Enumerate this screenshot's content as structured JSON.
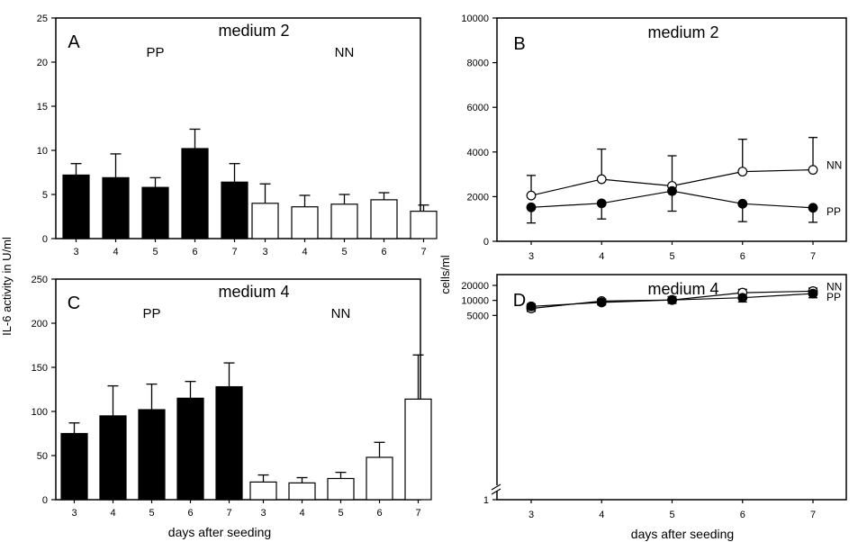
{
  "figure": {
    "ylabel_left": "IL-6 activity in U/ml",
    "ylabel_right": "cells/ml",
    "xlabel_left": "days after seeding",
    "xlabel_right": "days after seeding"
  },
  "chart_data": [
    {
      "id": "A",
      "type": "bar",
      "panel_letter": "A",
      "title": "medium 2",
      "ylim": [
        0,
        25
      ],
      "yticks": [
        0,
        5,
        10,
        15,
        20,
        25
      ],
      "groups": [
        {
          "name": "PP",
          "fill": "#000000",
          "categories": [
            "3",
            "4",
            "5",
            "6",
            "7"
          ],
          "values": [
            7.2,
            6.9,
            5.8,
            10.2,
            6.4
          ],
          "errors": [
            1.3,
            2.7,
            1.1,
            2.2,
            2.1
          ]
        },
        {
          "name": "NN",
          "fill": "#ffffff",
          "categories": [
            "3",
            "4",
            "5",
            "6",
            "7"
          ],
          "values": [
            4.0,
            3.6,
            3.9,
            4.4,
            3.1
          ],
          "errors": [
            2.2,
            1.3,
            1.1,
            0.8,
            0.7
          ]
        }
      ]
    },
    {
      "id": "C",
      "type": "bar",
      "panel_letter": "C",
      "title": "medium 4",
      "ylim": [
        0,
        250
      ],
      "yticks": [
        0,
        50,
        100,
        150,
        200,
        250
      ],
      "groups": [
        {
          "name": "PP",
          "fill": "#000000",
          "categories": [
            "3",
            "4",
            "5",
            "6",
            "7"
          ],
          "values": [
            75,
            95,
            102,
            115,
            128
          ],
          "errors": [
            12,
            34,
            29,
            19,
            27
          ]
        },
        {
          "name": "NN",
          "fill": "#ffffff",
          "categories": [
            "3",
            "4",
            "5",
            "6",
            "7"
          ],
          "values": [
            20,
            19,
            24,
            48,
            114
          ],
          "errors": [
            8,
            6,
            7,
            17,
            50
          ]
        }
      ]
    },
    {
      "id": "B",
      "type": "line",
      "panel_letter": "B",
      "title": "medium 2",
      "scale": "linear",
      "ylim": [
        0,
        10000
      ],
      "yticks": [
        0,
        2000,
        4000,
        6000,
        8000,
        10000
      ],
      "x": [
        3,
        4,
        5,
        6,
        7
      ],
      "series": [
        {
          "name": "NN",
          "marker": "open-circle",
          "values": [
            2050,
            2780,
            2480,
            3120,
            3200
          ],
          "errors": [
            900,
            1350,
            1350,
            1450,
            1450
          ]
        },
        {
          "name": "PP",
          "marker": "filled-circle",
          "values": [
            1520,
            1700,
            2250,
            1680,
            1500
          ],
          "errors": [
            700,
            700,
            900,
            800,
            650
          ]
        }
      ]
    },
    {
      "id": "D",
      "type": "line",
      "panel_letter": "D",
      "title": "medium 4",
      "scale": "log",
      "axis_break": true,
      "ylim": [
        1,
        20000
      ],
      "yticks": [
        1,
        5000,
        10000,
        20000
      ],
      "x": [
        3,
        4,
        5,
        6,
        7
      ],
      "series": [
        {
          "name": "NN",
          "marker": "open-circle",
          "values": [
            6900,
            9700,
            10200,
            14300,
            15300
          ],
          "errors": [
            1600,
            1000,
            1700,
            2400,
            2400
          ]
        },
        {
          "name": "PP",
          "marker": "filled-circle",
          "values": [
            7600,
            9100,
            10200,
            11300,
            13700
          ],
          "errors": [
            1600,
            1000,
            1500,
            2000,
            2400
          ]
        }
      ]
    }
  ]
}
